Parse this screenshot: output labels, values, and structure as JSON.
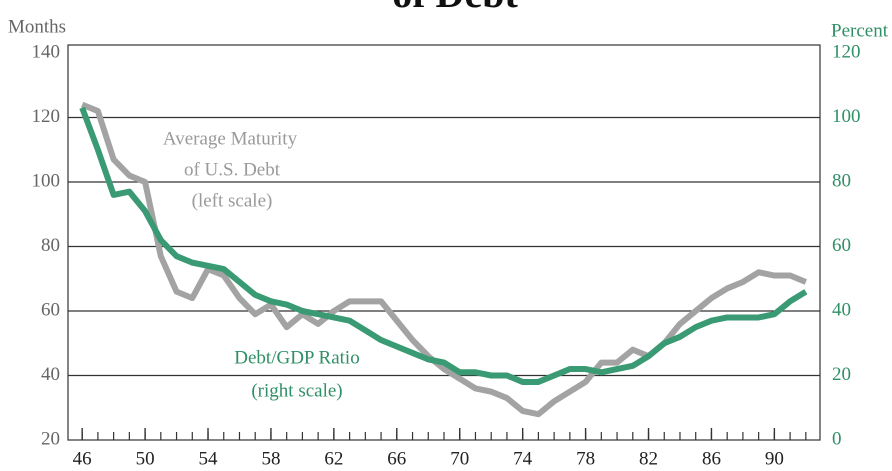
{
  "chart_data": {
    "type": "line",
    "title": "of Debt",
    "y_label": "Months",
    "y2_label": "Percent",
    "x": [
      46,
      47,
      48,
      49,
      50,
      51,
      52,
      53,
      54,
      55,
      56,
      57,
      58,
      59,
      60,
      61,
      62,
      63,
      64,
      65,
      66,
      67,
      68,
      69,
      70,
      71,
      72,
      73,
      74,
      75,
      76,
      77,
      78,
      79,
      80,
      81,
      82,
      83,
      84,
      85,
      86,
      87,
      88,
      89,
      90,
      91,
      92
    ],
    "xlim": [
      45.1,
      92.9
    ],
    "xticks": [
      46,
      50,
      54,
      58,
      62,
      66,
      70,
      74,
      78,
      82,
      86,
      90
    ],
    "ylim": [
      20,
      140
    ],
    "yticks": [
      20,
      40,
      60,
      80,
      100,
      120,
      140
    ],
    "y2lim": [
      0,
      120
    ],
    "y2ticks": [
      0,
      20,
      40,
      60,
      80,
      100,
      120
    ],
    "grid": true,
    "series": [
      {
        "name": "Average Maturity of U.S. Debt",
        "color": "#a3a3a3",
        "axis": "y",
        "values": [
          124,
          122,
          107,
          102,
          100,
          77,
          66,
          64,
          73,
          71,
          64,
          59,
          62,
          55,
          59,
          56,
          60,
          63,
          63,
          63,
          57,
          51,
          46,
          42,
          39,
          36,
          35,
          33,
          29,
          28,
          32,
          35,
          38,
          44,
          44,
          48,
          46,
          50,
          56,
          60,
          64,
          67,
          69,
          72,
          71,
          71,
          69
        ]
      },
      {
        "name": "Debt/GDP Ratio",
        "color": "#3a9a73",
        "axis": "y2",
        "values": [
          103,
          90,
          76,
          77,
          71,
          62,
          57,
          55,
          54,
          53,
          49,
          45,
          43,
          42,
          40,
          39,
          38,
          37,
          34,
          31,
          29,
          27,
          25,
          24,
          21,
          21,
          20,
          20,
          18,
          18,
          20,
          22,
          22,
          21,
          22,
          23,
          26,
          30,
          32,
          35,
          37,
          38,
          38,
          38,
          39,
          43,
          46
        ]
      }
    ],
    "annotations": [
      "Average Maturity",
      "of U.S. Debt",
      "(left scale)",
      "Debt/GDP Ratio",
      "(right scale)"
    ]
  }
}
